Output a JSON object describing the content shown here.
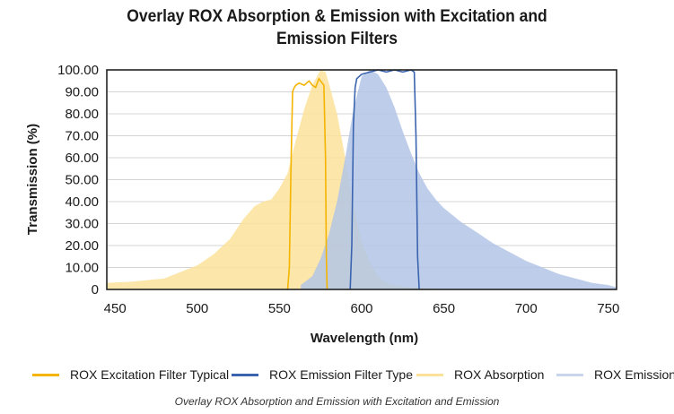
{
  "chart_data": {
    "type": "area",
    "title_line1": "Overlay ROX Absorption & Emission with Excitation and",
    "title_line2": "Emission Filters",
    "xlabel": "Wavelength (nm)",
    "ylabel": "Transmission (%)",
    "xlim": [
      445,
      755
    ],
    "ylim": [
      0,
      100
    ],
    "xticks": [
      450,
      500,
      550,
      600,
      650,
      700,
      750
    ],
    "xtick_labels": [
      "450",
      "500",
      "550",
      "600",
      "650",
      "700",
      "750"
    ],
    "yticks": [
      0,
      10,
      20,
      30,
      40,
      50,
      60,
      70,
      80,
      90,
      100
    ],
    "ytick_labels": [
      "0",
      "10.00",
      "20.00",
      "30.00",
      "40.00",
      "50.00",
      "60.00",
      "70.00",
      "80.00",
      "90.00",
      "100.00"
    ],
    "grid": true,
    "series": [
      {
        "name": "ROX Absorption",
        "kind": "area",
        "color": "#fbe29a",
        "x": [
          445,
          460,
          480,
          500,
          510,
          520,
          528,
          535,
          540,
          545,
          550,
          555,
          560,
          565,
          570,
          575,
          578,
          580,
          585,
          590,
          595,
          600,
          605,
          610,
          615,
          620,
          630,
          640,
          650
        ],
        "y": [
          3,
          3.5,
          5,
          11,
          16,
          23,
          32,
          38,
          40,
          41,
          46,
          53,
          68,
          82,
          93,
          100,
          99,
          94,
          80,
          60,
          38,
          22,
          12,
          6,
          3,
          2,
          1,
          0.5,
          0
        ]
      },
      {
        "name": "ROX Emission",
        "kind": "area",
        "color": "#b3c5e6",
        "x": [
          563,
          570,
          575,
          580,
          585,
          590,
          595,
          600,
          605,
          610,
          615,
          620,
          625,
          630,
          635,
          640,
          645,
          650,
          655,
          660,
          670,
          680,
          690,
          700,
          710,
          720,
          730,
          740,
          750,
          755
        ],
        "y": [
          2,
          6,
          14,
          25,
          40,
          60,
          82,
          97,
          100,
          98,
          92,
          83,
          72,
          62,
          53,
          46,
          41,
          37,
          34,
          31,
          26,
          21,
          17,
          13,
          10,
          7,
          5,
          3,
          2,
          1
        ]
      },
      {
        "name": "ROX Excitation Filter Typical",
        "kind": "line",
        "color": "#f4b400",
        "x": [
          555,
          556,
          557,
          558,
          559,
          560,
          562,
          565,
          568,
          570,
          572,
          574,
          575,
          576,
          577,
          578,
          578.5,
          579
        ],
        "y": [
          0,
          10,
          55,
          90,
          92,
          93,
          94,
          93,
          95,
          93,
          92,
          96,
          95,
          94,
          93,
          60,
          15,
          0
        ]
      },
      {
        "name": "ROX Emission Filter Type",
        "kind": "line",
        "color": "#3b64b0",
        "x": [
          593,
          594,
          595,
          596,
          597,
          600,
          605,
          610,
          615,
          620,
          625,
          630,
          632,
          633,
          634,
          635
        ],
        "y": [
          0,
          20,
          75,
          92,
          96,
          98,
          99,
          100,
          99,
          100,
          99,
          100,
          99,
          70,
          15,
          0
        ]
      }
    ]
  },
  "legend": [
    {
      "label": "ROX Excitation Filter Typical",
      "color": "#f4b400"
    },
    {
      "label": "ROX Emission Filter Type",
      "color": "#3b64b0"
    },
    {
      "label": "ROX Absorption",
      "color": "#fbe29a"
    },
    {
      "label": "ROX Emission",
      "color": "#c7d5ee"
    }
  ],
  "caption": "Overlay ROX Absorption and Emission with Excitation and Emission"
}
